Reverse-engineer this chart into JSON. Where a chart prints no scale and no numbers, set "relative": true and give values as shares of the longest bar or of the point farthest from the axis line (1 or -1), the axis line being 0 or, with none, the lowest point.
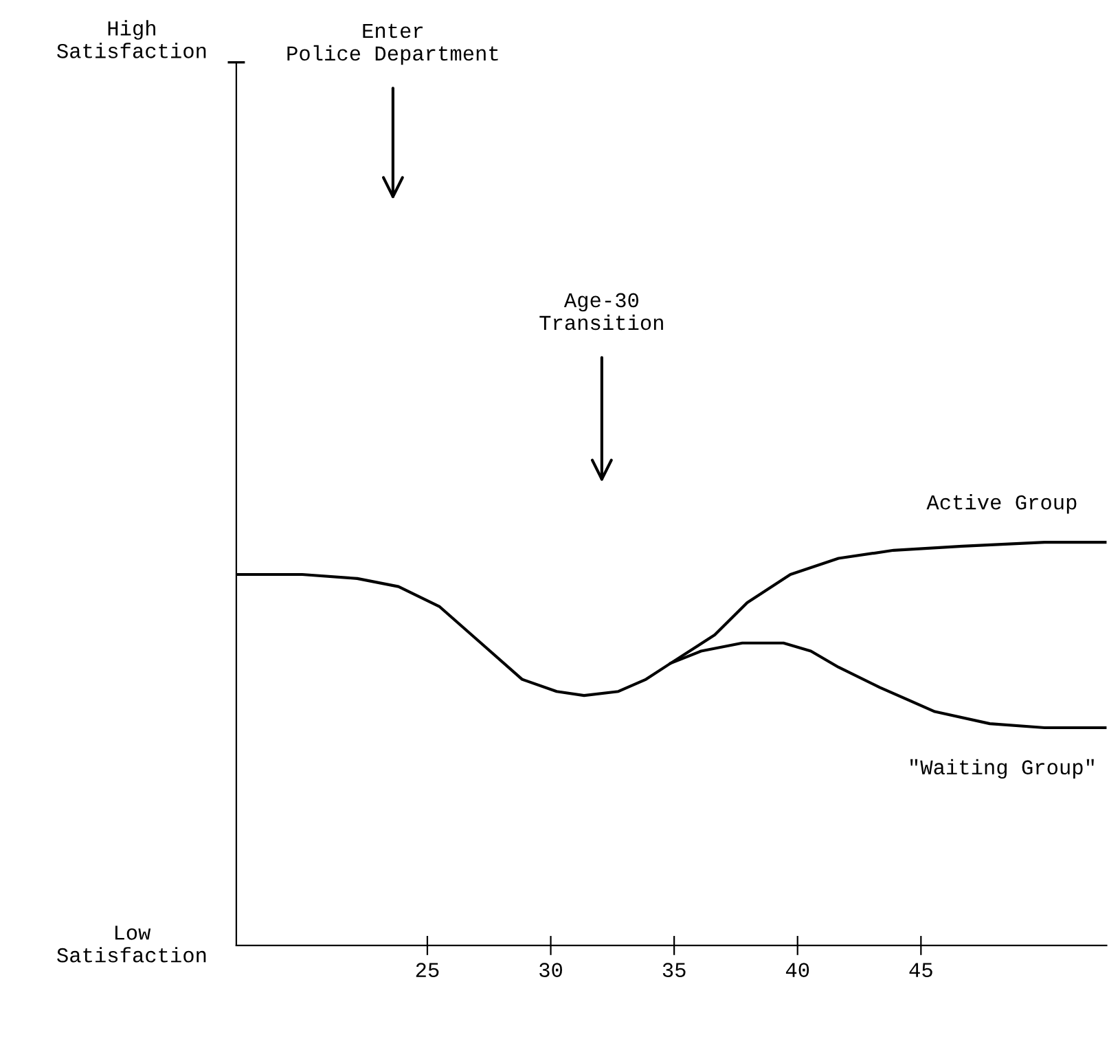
{
  "chart_data": {
    "type": "line",
    "relative": true,
    "xlim": [
      17.26,
      52.52
    ],
    "xticks": [
      25,
      30,
      35,
      40,
      45
    ],
    "grid": false,
    "legend": false,
    "marker": "none",
    "line_style": "solid",
    "series": [
      {
        "name": "Active Group",
        "color": "#000000",
        "x": [
          17.26,
          19.93,
          22.16,
          23.83,
          25.5,
          27.17,
          28.84,
          30.24,
          31.35,
          32.74,
          33.86,
          34.86,
          36.64,
          37.96,
          39.71,
          41.66,
          43.89,
          46.67,
          50.01,
          52.52
        ],
        "values": [
          0.92,
          0.92,
          0.91,
          0.89,
          0.84,
          0.75,
          0.66,
          0.63,
          0.62,
          0.63,
          0.66,
          0.7,
          0.77,
          0.85,
          0.92,
          0.96,
          0.98,
          0.99,
          1.0,
          1.0
        ]
      },
      {
        "name": "\"Waiting Group\"",
        "color": "#000000",
        "x": [
          34.86,
          36.09,
          37.76,
          39.43,
          40.54,
          41.66,
          43.33,
          45.56,
          47.79,
          50.01,
          52.52
        ],
        "values": [
          0.7,
          0.73,
          0.75,
          0.75,
          0.73,
          0.69,
          0.64,
          0.58,
          0.55,
          0.54,
          0.54
        ]
      }
    ],
    "annotations": [
      "High\nSatisfaction",
      "Low\nSatisfaction",
      "Enter\nPolice Department",
      "Age-30\nTransition"
    ]
  }
}
